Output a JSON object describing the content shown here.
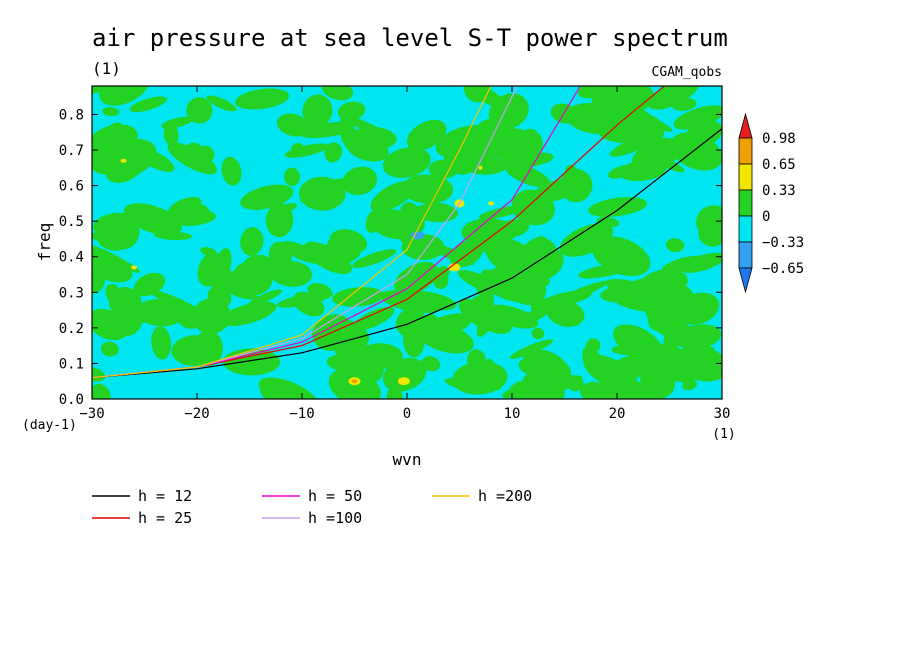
{
  "chart_data": {
    "type": "heatmap",
    "title": "air pressure at sea level S-T power spectrum",
    "subtitle": "(1)",
    "source_label": "CGAM_qobs",
    "xlabel": "wvn",
    "ylabel": "freq",
    "x_unit": "(1)",
    "y_unit": "(day-1)",
    "xlim": [
      -30,
      30
    ],
    "ylim": [
      0.0,
      0.88
    ],
    "x_ticks": [
      -30,
      -20,
      -10,
      0,
      10,
      20,
      30
    ],
    "x_tick_labels": [
      "−30",
      "−20",
      "−10",
      "0",
      "10",
      "20",
      "30"
    ],
    "y_ticks": [
      0.0,
      0.1,
      0.2,
      0.3,
      0.4,
      0.5,
      0.6,
      0.7,
      0.8
    ],
    "y_tick_labels": [
      "0.0",
      "0.1",
      "0.2",
      "0.3",
      "0.4",
      "0.5",
      "0.6",
      "0.7",
      "0.8"
    ],
    "colorbar": {
      "levels": [
        -0.65,
        -0.33,
        0,
        0.33,
        0.65,
        0.98
      ],
      "labels": [
        "−0.65",
        "−0.33",
        "0",
        "0.33",
        "0.65",
        "0.98"
      ],
      "colors": [
        "#1e78f0",
        "#34a0f0",
        "#00e6f0",
        "#23d223",
        "#f0e600",
        "#f0a000",
        "#e61e1e"
      ]
    },
    "field_description_colors": {
      "background": "#00e6f0",
      "main": "#23d223"
    },
    "series": [
      {
        "name": "h = 12",
        "color": "#000000",
        "x": [
          -30,
          -20,
          -10,
          0,
          10,
          20,
          30
        ],
        "y": [
          0.06,
          0.085,
          0.13,
          0.21,
          0.34,
          0.53,
          0.76
        ]
      },
      {
        "name": "h = 25",
        "color": "#e60000",
        "x": [
          -30,
          -20,
          -10,
          0,
          10,
          20,
          24.5
        ],
        "y": [
          0.06,
          0.09,
          0.15,
          0.28,
          0.5,
          0.77,
          0.88
        ]
      },
      {
        "name": "h = 50",
        "color": "#e600c8",
        "x": [
          -30,
          -20,
          -10,
          0,
          10,
          16.5
        ],
        "y": [
          0.06,
          0.09,
          0.16,
          0.31,
          0.56,
          0.88
        ]
      },
      {
        "name": "h =100",
        "color": "#c8a0f0",
        "x": [
          -30,
          -20,
          -10,
          0,
          5,
          10.5
        ],
        "y": [
          0.06,
          0.09,
          0.17,
          0.35,
          0.55,
          0.88
        ]
      },
      {
        "name": "h =200",
        "color": "#f0c800",
        "x": [
          -30,
          -20,
          -10,
          0,
          5,
          8
        ],
        "y": [
          0.06,
          0.09,
          0.18,
          0.42,
          0.7,
          0.88
        ]
      }
    ]
  }
}
